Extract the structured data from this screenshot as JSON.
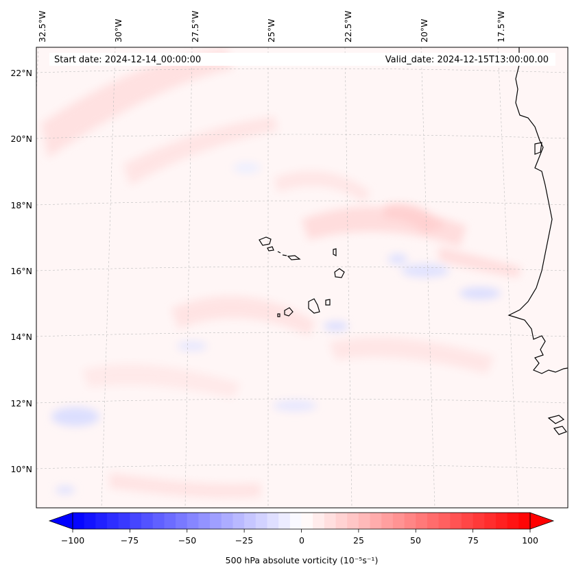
{
  "map": {
    "start_label": "Start date: 2024-12-14_00:00:00",
    "valid_label": "Valid_date: 2024-12-15T13:00:00.00",
    "lon_labels": [
      "32.5°W",
      "30°W",
      "27.5°W",
      "25°W",
      "22.5°W",
      "20°W",
      "17.5°W"
    ],
    "lat_labels": [
      "22°N",
      "20°N",
      "18°N",
      "16°N",
      "14°N",
      "12°N",
      "10°N"
    ],
    "colors": {
      "coast": "#000000",
      "grid": "#bbbbbb",
      "frame": "#000000"
    }
  },
  "colorbar": {
    "label": "500 hPa absolute vorticity (10⁻⁵s⁻¹)",
    "ticks": [
      "−100",
      "−75",
      "−50",
      "−25",
      "0",
      "25",
      "50",
      "75",
      "100"
    ],
    "range": [
      -100,
      100
    ],
    "colors": {
      "neg": "#0000ff",
      "mid": "#ffffff",
      "pos": "#ff0000"
    }
  }
}
